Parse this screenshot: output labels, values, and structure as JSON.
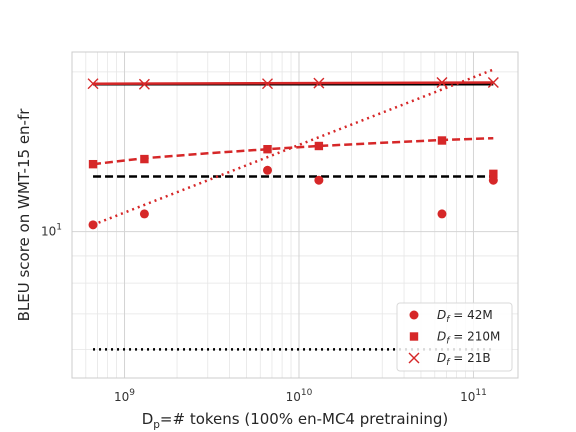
{
  "chart_data": {
    "type": "scatter",
    "xlabel": "D_p=# tokens (100% en-MC4 pretraining)",
    "ylabel": "BLEU score on WMT-15 en-fr",
    "xscale": "log",
    "yscale": "log",
    "xlim": [
      500000000,
      180000000000
    ],
    "ylim": [
      5.3,
      21.8
    ],
    "x_ticks": [
      {
        "value": 1000000000,
        "base": "10",
        "exp": "9"
      },
      {
        "value": 10000000000,
        "base": "10",
        "exp": "10"
      },
      {
        "value": 100000000000,
        "base": "10",
        "exp": "11"
      }
    ],
    "y_ticks": [
      {
        "value": 10,
        "base": "10",
        "exp": "1"
      }
    ],
    "grid": true,
    "legend_position": "bottom-right",
    "color": "#d62728",
    "series": [
      {
        "name": "D_f = 42M",
        "legend_main": "D",
        "legend_sub": "f",
        "legend_value": " = 42M",
        "marker": "circle",
        "x": [
          660000000,
          1300000000,
          6600000000,
          13000000000,
          66000000000,
          130000000000
        ],
        "y": [
          10.3,
          10.8,
          13.05,
          12.5,
          10.8,
          12.5
        ],
        "fit": {
          "style": "dotted",
          "x": [
            660000000,
            130000000000
          ],
          "y": [
            10.3,
            20.2
          ]
        },
        "limit": {
          "style": "dotted",
          "color": "#000000",
          "y": 6.0
        }
      },
      {
        "name": "D_f = 210M",
        "legend_main": "D",
        "legend_sub": "f",
        "legend_value": " = 210M",
        "marker": "square",
        "x": [
          660000000,
          1300000000,
          6600000000,
          13000000000,
          66000000000,
          130000000000
        ],
        "y": [
          13.4,
          13.7,
          14.3,
          14.5,
          14.85,
          12.85
        ],
        "fit": {
          "style": "dashed",
          "x": [
            660000000,
            1300000000,
            3000000000,
            6600000000,
            13000000000,
            30000000000,
            66000000000,
            130000000000
          ],
          "y": [
            13.4,
            13.75,
            14.05,
            14.3,
            14.5,
            14.7,
            14.88,
            15.0
          ]
        },
        "limit": {
          "style": "dashed",
          "color": "#000000",
          "y": 12.7
        }
      },
      {
        "name": "D_f = 21B",
        "legend_main": "D",
        "legend_sub": "f",
        "legend_value": " = 21B",
        "marker": "x",
        "x": [
          660000000,
          1300000000,
          6600000000,
          13000000000,
          66000000000,
          130000000000
        ],
        "y": [
          19.0,
          18.95,
          19.0,
          19.05,
          19.1,
          19.1
        ],
        "fit": {
          "style": "solid",
          "x": [
            660000000,
            130000000000
          ],
          "y": [
            19.0,
            19.1
          ]
        },
        "limit": {
          "style": "solid",
          "color": "#000000",
          "y": 18.95
        }
      }
    ]
  }
}
